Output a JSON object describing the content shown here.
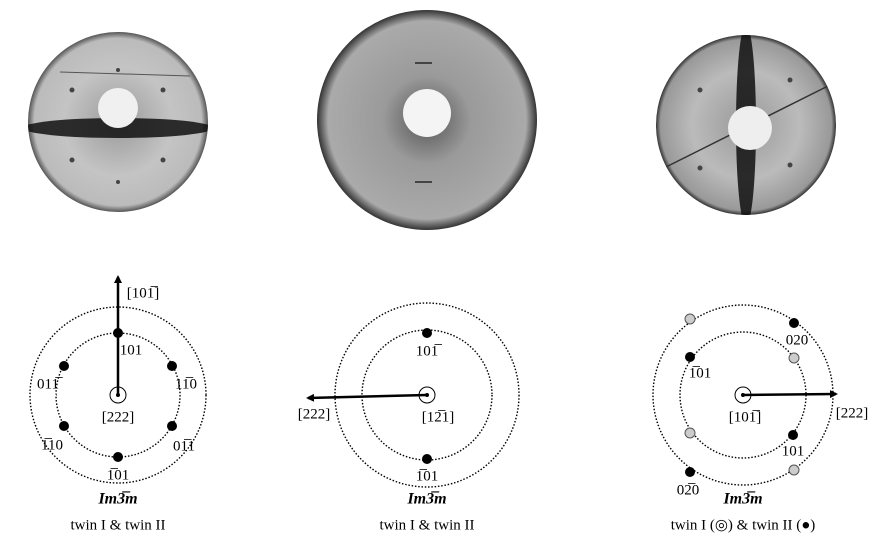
{
  "panels": [
    {
      "labels": [
        "[101̅]",
        "101",
        "011̅",
        "11̅0",
        "1̅10",
        "01̅1",
        "1̅01",
        "[222]"
      ],
      "space_group": "Im3̅m",
      "caption": "twin I & twin II"
    },
    {
      "labels": [
        "101̅",
        "1̅01",
        "[222]",
        "[12̅1]"
      ],
      "space_group": "Im3̅m",
      "caption": "twin I & twin II"
    },
    {
      "labels": [
        "020",
        "1̅01",
        "101",
        "02̅0",
        "[101̅]",
        "[222]"
      ],
      "space_group": "Im3̅m",
      "caption": "twin I (◎) & twin II (●)"
    }
  ]
}
